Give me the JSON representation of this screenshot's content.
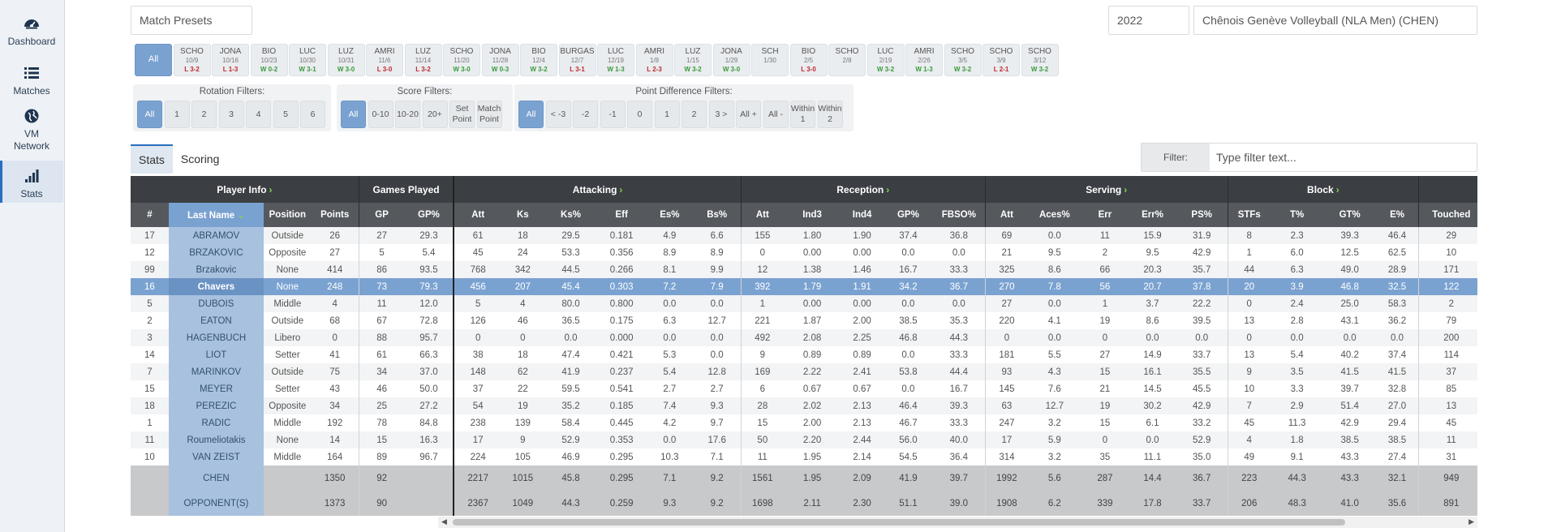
{
  "sidebar": {
    "items": [
      {
        "label": "Dashboard",
        "icon": "dashboard-icon"
      },
      {
        "label": "Matches",
        "icon": "list-icon"
      },
      {
        "label": "VM Network",
        "icon": "globe-icon"
      },
      {
        "label": "Stats",
        "icon": "signal-bars-icon"
      }
    ]
  },
  "topbar": {
    "presets": "Match Presets",
    "year": "2022",
    "team": "Chênois Genève Volleyball (NLA Men) (CHEN)"
  },
  "matches": {
    "all_label": "All",
    "items": [
      {
        "opp": "SCHO",
        "date": "10/9",
        "result": "L 3-2",
        "type": "loss"
      },
      {
        "opp": "JONA",
        "date": "10/16",
        "result": "L 1-3",
        "type": "loss"
      },
      {
        "opp": "BIO",
        "date": "10/23",
        "result": "W 0-2",
        "type": "win"
      },
      {
        "opp": "LUC",
        "date": "10/30",
        "result": "W 3-1",
        "type": "win"
      },
      {
        "opp": "LUZ",
        "date": "10/31",
        "result": "W 3-0",
        "type": "win"
      },
      {
        "opp": "AMRI",
        "date": "11/6",
        "result": "L 3-0",
        "type": "loss"
      },
      {
        "opp": "LUZ",
        "date": "11/14",
        "result": "L 3-2",
        "type": "loss"
      },
      {
        "opp": "SCHO",
        "date": "11/20",
        "result": "W 3-0",
        "type": "win"
      },
      {
        "opp": "JONA",
        "date": "11/28",
        "result": "W 0-3",
        "type": "win"
      },
      {
        "opp": "BIO",
        "date": "12/4",
        "result": "W 3-2",
        "type": "win"
      },
      {
        "opp": "BURGAS",
        "date": "12/7",
        "result": "L 3-1",
        "type": "loss"
      },
      {
        "opp": "LUC",
        "date": "12/19",
        "result": "W 1-3",
        "type": "win"
      },
      {
        "opp": "AMRI",
        "date": "1/8",
        "result": "L 2-3",
        "type": "loss"
      },
      {
        "opp": "LUZ",
        "date": "1/15",
        "result": "W 3-2",
        "type": "win"
      },
      {
        "opp": "JONA",
        "date": "1/29",
        "result": "W 3-0",
        "type": "win"
      },
      {
        "opp": "SCH",
        "date": "1/30",
        "result": "",
        "type": "none"
      },
      {
        "opp": "BIO",
        "date": "2/5",
        "result": "L 3-0",
        "type": "loss"
      },
      {
        "opp": "SCHO",
        "date": "2/8",
        "result": "",
        "type": "none"
      },
      {
        "opp": "LUC",
        "date": "2/19",
        "result": "W 3-2",
        "type": "win"
      },
      {
        "opp": "AMRI",
        "date": "2/26",
        "result": "W 1-3",
        "type": "win"
      },
      {
        "opp": "SCHO",
        "date": "3/5",
        "result": "W 3-2",
        "type": "win"
      },
      {
        "opp": "SCHO",
        "date": "3/9",
        "result": "L 2-1",
        "type": "loss"
      },
      {
        "opp": "SCHO",
        "date": "3/12",
        "result": "W 3-2",
        "type": "win"
      }
    ]
  },
  "filters": {
    "rotation": {
      "title": "Rotation Filters:",
      "options": [
        "All",
        "1",
        "2",
        "3",
        "4",
        "5",
        "6"
      ]
    },
    "score": {
      "title": "Score Filters:",
      "options": [
        "All",
        "0-10",
        "10-20",
        "20+",
        "Set Point",
        "Match Point"
      ]
    },
    "point_diff": {
      "title": "Point Difference Filters:",
      "options": [
        "All",
        "< -3",
        "-2",
        "-1",
        "0",
        "1",
        "2",
        "3 >",
        "All +",
        "All -",
        "Within 1",
        "Within 2"
      ]
    }
  },
  "tabs": [
    "Stats",
    "Scoring"
  ],
  "filter_box": {
    "label": "Filter:",
    "placeholder": "Type filter text..."
  },
  "table": {
    "groups": [
      "",
      "Player Info",
      "Games Played",
      "Attacking",
      "Reception",
      "Serving",
      "Block",
      ""
    ],
    "columns": [
      "#",
      "Last Name",
      "Position",
      "Points",
      "GP",
      "GP%",
      "Att",
      "Ks",
      "Ks%",
      "Eff",
      "Es%",
      "Bs%",
      "Att",
      "Ind3",
      "Ind4",
      "GP%",
      "FBSO%",
      "Att",
      "Aces%",
      "Err",
      "Err%",
      "PS%",
      "STFs",
      "T%",
      "GT%",
      "E%",
      "Touched"
    ],
    "rows": [
      [
        "17",
        "ABRAMOV",
        "Outside",
        "26",
        "27",
        "29.3",
        "61",
        "18",
        "29.5",
        "0.181",
        "4.9",
        "6.6",
        "155",
        "1.80",
        "1.90",
        "37.4",
        "36.8",
        "69",
        "0.0",
        "11",
        "15.9",
        "31.9",
        "8",
        "2.3",
        "39.3",
        "46.4",
        "29"
      ],
      [
        "12",
        "BRZAKOVIC",
        "Opposite",
        "27",
        "5",
        "5.4",
        "45",
        "24",
        "53.3",
        "0.356",
        "8.9",
        "8.9",
        "0",
        "0.00",
        "0.00",
        "0.0",
        "0.0",
        "21",
        "9.5",
        "2",
        "9.5",
        "42.9",
        "1",
        "6.0",
        "12.5",
        "62.5",
        "10"
      ],
      [
        "99",
        "Brzakovic",
        "None",
        "414",
        "86",
        "93.5",
        "768",
        "342",
        "44.5",
        "0.266",
        "8.1",
        "9.9",
        "12",
        "1.38",
        "1.46",
        "16.7",
        "33.3",
        "325",
        "8.6",
        "66",
        "20.3",
        "35.7",
        "44",
        "6.3",
        "49.0",
        "28.9",
        "171"
      ],
      [
        "16",
        "Chavers",
        "None",
        "248",
        "73",
        "79.3",
        "456",
        "207",
        "45.4",
        "0.303",
        "7.2",
        "7.9",
        "392",
        "1.79",
        "1.91",
        "34.2",
        "36.7",
        "270",
        "7.8",
        "56",
        "20.7",
        "37.8",
        "20",
        "3.9",
        "46.8",
        "32.5",
        "122"
      ],
      [
        "5",
        "DUBOIS",
        "Middle",
        "4",
        "11",
        "12.0",
        "5",
        "4",
        "80.0",
        "0.800",
        "0.0",
        "0.0",
        "1",
        "0.00",
        "0.00",
        "0.0",
        "0.0",
        "27",
        "0.0",
        "1",
        "3.7",
        "22.2",
        "0",
        "2.4",
        "25.0",
        "58.3",
        "2"
      ],
      [
        "2",
        "EATON",
        "Outside",
        "68",
        "67",
        "72.8",
        "126",
        "46",
        "36.5",
        "0.175",
        "6.3",
        "12.7",
        "221",
        "1.87",
        "2.00",
        "38.5",
        "35.3",
        "220",
        "4.1",
        "19",
        "8.6",
        "39.5",
        "13",
        "2.8",
        "43.1",
        "36.2",
        "79"
      ],
      [
        "3",
        "HAGENBUCH",
        "Libero",
        "0",
        "88",
        "95.7",
        "0",
        "0",
        "0.0",
        "0.000",
        "0.0",
        "0.0",
        "492",
        "2.08",
        "2.25",
        "46.8",
        "44.3",
        "0",
        "0.0",
        "0",
        "0.0",
        "0.0",
        "0",
        "0.0",
        "0.0",
        "0.0",
        "200"
      ],
      [
        "14",
        "LIOT",
        "Setter",
        "41",
        "61",
        "66.3",
        "38",
        "18",
        "47.4",
        "0.421",
        "5.3",
        "0.0",
        "9",
        "0.89",
        "0.89",
        "0.0",
        "33.3",
        "181",
        "5.5",
        "27",
        "14.9",
        "33.7",
        "13",
        "5.4",
        "40.2",
        "37.4",
        "114"
      ],
      [
        "7",
        "MARINKOV",
        "Outside",
        "75",
        "34",
        "37.0",
        "148",
        "62",
        "41.9",
        "0.237",
        "5.4",
        "12.8",
        "169",
        "2.22",
        "2.41",
        "53.8",
        "44.4",
        "93",
        "4.3",
        "15",
        "16.1",
        "35.5",
        "9",
        "3.5",
        "41.5",
        "41.5",
        "37"
      ],
      [
        "15",
        "MEYER",
        "Setter",
        "43",
        "46",
        "50.0",
        "37",
        "22",
        "59.5",
        "0.541",
        "2.7",
        "2.7",
        "6",
        "0.67",
        "0.67",
        "0.0",
        "16.7",
        "145",
        "7.6",
        "21",
        "14.5",
        "45.5",
        "10",
        "3.3",
        "39.7",
        "32.8",
        "85"
      ],
      [
        "18",
        "PEREZIC",
        "Opposite",
        "34",
        "25",
        "27.2",
        "54",
        "19",
        "35.2",
        "0.185",
        "7.4",
        "9.3",
        "28",
        "2.02",
        "2.13",
        "46.4",
        "39.3",
        "63",
        "12.7",
        "19",
        "30.2",
        "42.9",
        "7",
        "2.9",
        "51.4",
        "27.0",
        "13"
      ],
      [
        "1",
        "RADIC",
        "Middle",
        "192",
        "78",
        "84.8",
        "238",
        "139",
        "58.4",
        "0.445",
        "4.2",
        "9.7",
        "15",
        "2.00",
        "2.13",
        "46.7",
        "33.3",
        "247",
        "3.2",
        "15",
        "6.1",
        "33.2",
        "45",
        "11.3",
        "42.9",
        "29.4",
        "45"
      ],
      [
        "11",
        "Roumeliotakis",
        "None",
        "14",
        "15",
        "16.3",
        "17",
        "9",
        "52.9",
        "0.353",
        "0.0",
        "17.6",
        "50",
        "2.20",
        "2.44",
        "56.0",
        "40.0",
        "17",
        "5.9",
        "0",
        "0.0",
        "52.9",
        "4",
        "1.8",
        "38.5",
        "38.5",
        "11"
      ],
      [
        "10",
        "VAN ZEIST",
        "Middle",
        "164",
        "89",
        "96.7",
        "224",
        "105",
        "46.9",
        "0.295",
        "10.3",
        "7.1",
        "11",
        "1.95",
        "2.14",
        "54.5",
        "36.4",
        "314",
        "3.2",
        "35",
        "11.1",
        "35.0",
        "49",
        "9.1",
        "43.3",
        "27.4",
        "31"
      ]
    ],
    "highlight_row": 3,
    "totals": [
      [
        "",
        "CHEN",
        "",
        "1350",
        "92",
        "",
        "2217",
        "1015",
        "45.8",
        "0.295",
        "7.1",
        "9.2",
        "1561",
        "1.95",
        "2.09",
        "41.9",
        "39.7",
        "1992",
        "5.6",
        "287",
        "14.4",
        "36.7",
        "223",
        "44.3",
        "43.3",
        "32.1",
        "949"
      ],
      [
        "",
        "OPPONENT(S)",
        "",
        "1373",
        "90",
        "",
        "2367",
        "1049",
        "44.3",
        "0.259",
        "9.3",
        "9.2",
        "1698",
        "2.11",
        "2.30",
        "51.1",
        "39.0",
        "1908",
        "6.2",
        "339",
        "17.8",
        "33.7",
        "206",
        "48.3",
        "41.0",
        "35.6",
        "891"
      ]
    ]
  },
  "colors": {
    "accent": "#7aa2d1",
    "header_dark": "#3b3e42",
    "win": "#3a9a3a",
    "loss": "#c0282e",
    "chevron": "#7fd44c"
  }
}
